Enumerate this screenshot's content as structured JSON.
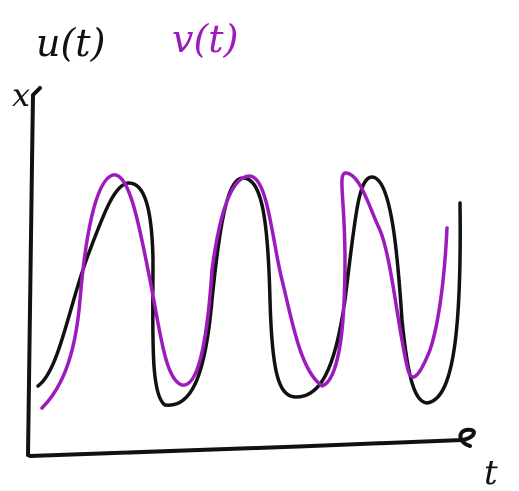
{
  "legend": {
    "u_label": "u(t)",
    "v_label": "v(t)"
  },
  "axes": {
    "y_label": "x",
    "x_label": "t"
  }
}
